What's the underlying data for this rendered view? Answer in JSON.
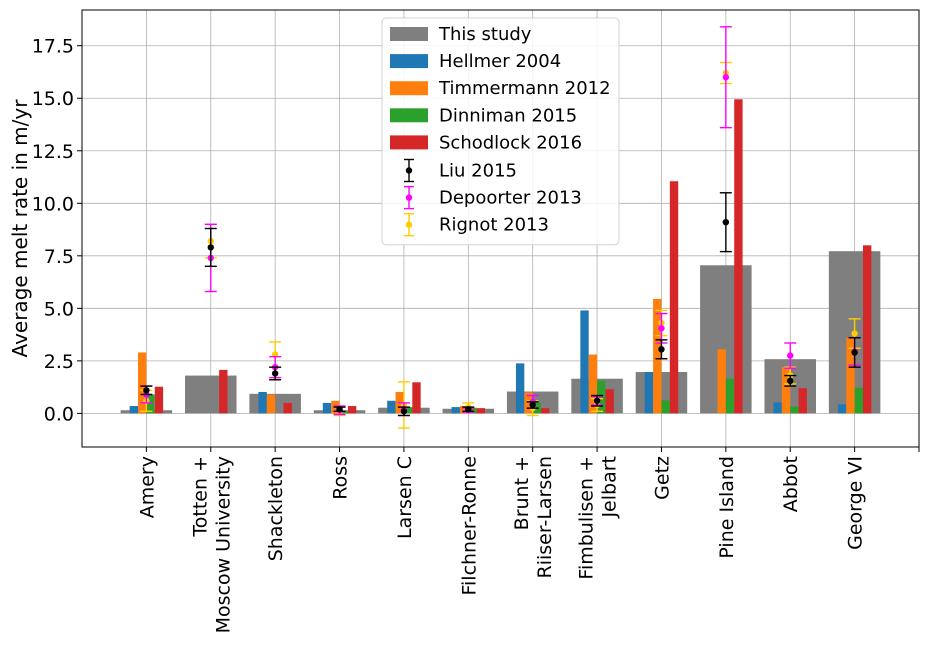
{
  "chart_data": {
    "type": "bar",
    "ylabel": "Average melt rate in m/yr",
    "xlabel": "",
    "ylim": [
      -1.6,
      19.2
    ],
    "yticks": [
      0.0,
      2.5,
      5.0,
      7.5,
      10.0,
      12.5,
      15.0,
      17.5
    ],
    "ytick_labels": [
      "0.0",
      "2.5",
      "5.0",
      "7.5",
      "10.0",
      "12.5",
      "15.0",
      "17.5"
    ],
    "grid": true,
    "legend_position": "top-center",
    "categories": [
      "Amery",
      "Totten +\nMoscow University",
      "Shackleton",
      "Ross",
      "Larsen C",
      "Filchner-Ronne",
      "Brunt +\nRiiser-Larsen",
      "Fimbulisen +\nJelbart",
      "Getz",
      "Pine Island",
      "Abbot",
      "George VI"
    ],
    "bar_series": [
      {
        "name": "This study",
        "color": "#7f7f7f",
        "values": [
          0.15,
          1.8,
          0.93,
          0.15,
          0.27,
          0.22,
          1.04,
          1.65,
          1.97,
          7.05,
          2.58,
          7.72
        ]
      },
      {
        "name": "Hellmer 2004",
        "color": "#1f77b4",
        "values": [
          0.35,
          null,
          1.02,
          0.5,
          0.6,
          0.3,
          2.38,
          4.9,
          1.97,
          null,
          0.52,
          0.43
        ]
      },
      {
        "name": "Timmermann 2012",
        "color": "#ff7f0e",
        "values": [
          2.9,
          null,
          0.9,
          0.6,
          1.02,
          0.35,
          1.0,
          2.8,
          5.45,
          3.05,
          2.2,
          3.6
        ]
      },
      {
        "name": "Dinniman 2015",
        "color": "#2ca02c",
        "values": [
          0.9,
          null,
          null,
          0.1,
          0.3,
          0.27,
          0.5,
          1.55,
          0.62,
          1.65,
          0.32,
          1.22
        ]
      },
      {
        "name": "Schodlock 2016",
        "color": "#d62728",
        "values": [
          1.27,
          2.07,
          0.5,
          0.35,
          1.48,
          0.25,
          0.25,
          1.15,
          11.05,
          14.95,
          1.2,
          8.0
        ]
      }
    ],
    "point_series": [
      {
        "name": "Liu 2015",
        "color": "#000000",
        "values": [
          1.1,
          7.9,
          1.9,
          0.2,
          0.1,
          0.2,
          0.4,
          0.6,
          3.05,
          9.1,
          1.55,
          2.9
        ],
        "errors": [
          0.2,
          0.9,
          0.3,
          0.1,
          0.2,
          0.1,
          0.15,
          0.25,
          0.45,
          1.4,
          0.25,
          0.7
        ]
      },
      {
        "name": "Depoorter 2013",
        "color": "#ff00ff",
        "values": [
          0.9,
          7.4,
          2.2,
          0.15,
          0.2,
          0.15,
          0.55,
          0.6,
          4.05,
          16.0,
          2.75,
          2.95
        ],
        "errors": [
          0.4,
          1.6,
          0.5,
          0.2,
          0.3,
          0.1,
          0.3,
          0.2,
          0.7,
          2.4,
          0.6,
          0.65
        ]
      },
      {
        "name": "Rignot 2013",
        "color": "#ffcc00",
        "values": [
          0.6,
          8.2,
          2.8,
          0.1,
          0.4,
          0.3,
          0.25,
          0.4,
          4.3,
          16.2,
          1.8,
          3.8
        ],
        "errors": [
          0.5,
          0.8,
          0.6,
          0.2,
          1.1,
          0.2,
          0.35,
          0.3,
          0.6,
          0.5,
          0.4,
          0.7
        ]
      }
    ]
  }
}
